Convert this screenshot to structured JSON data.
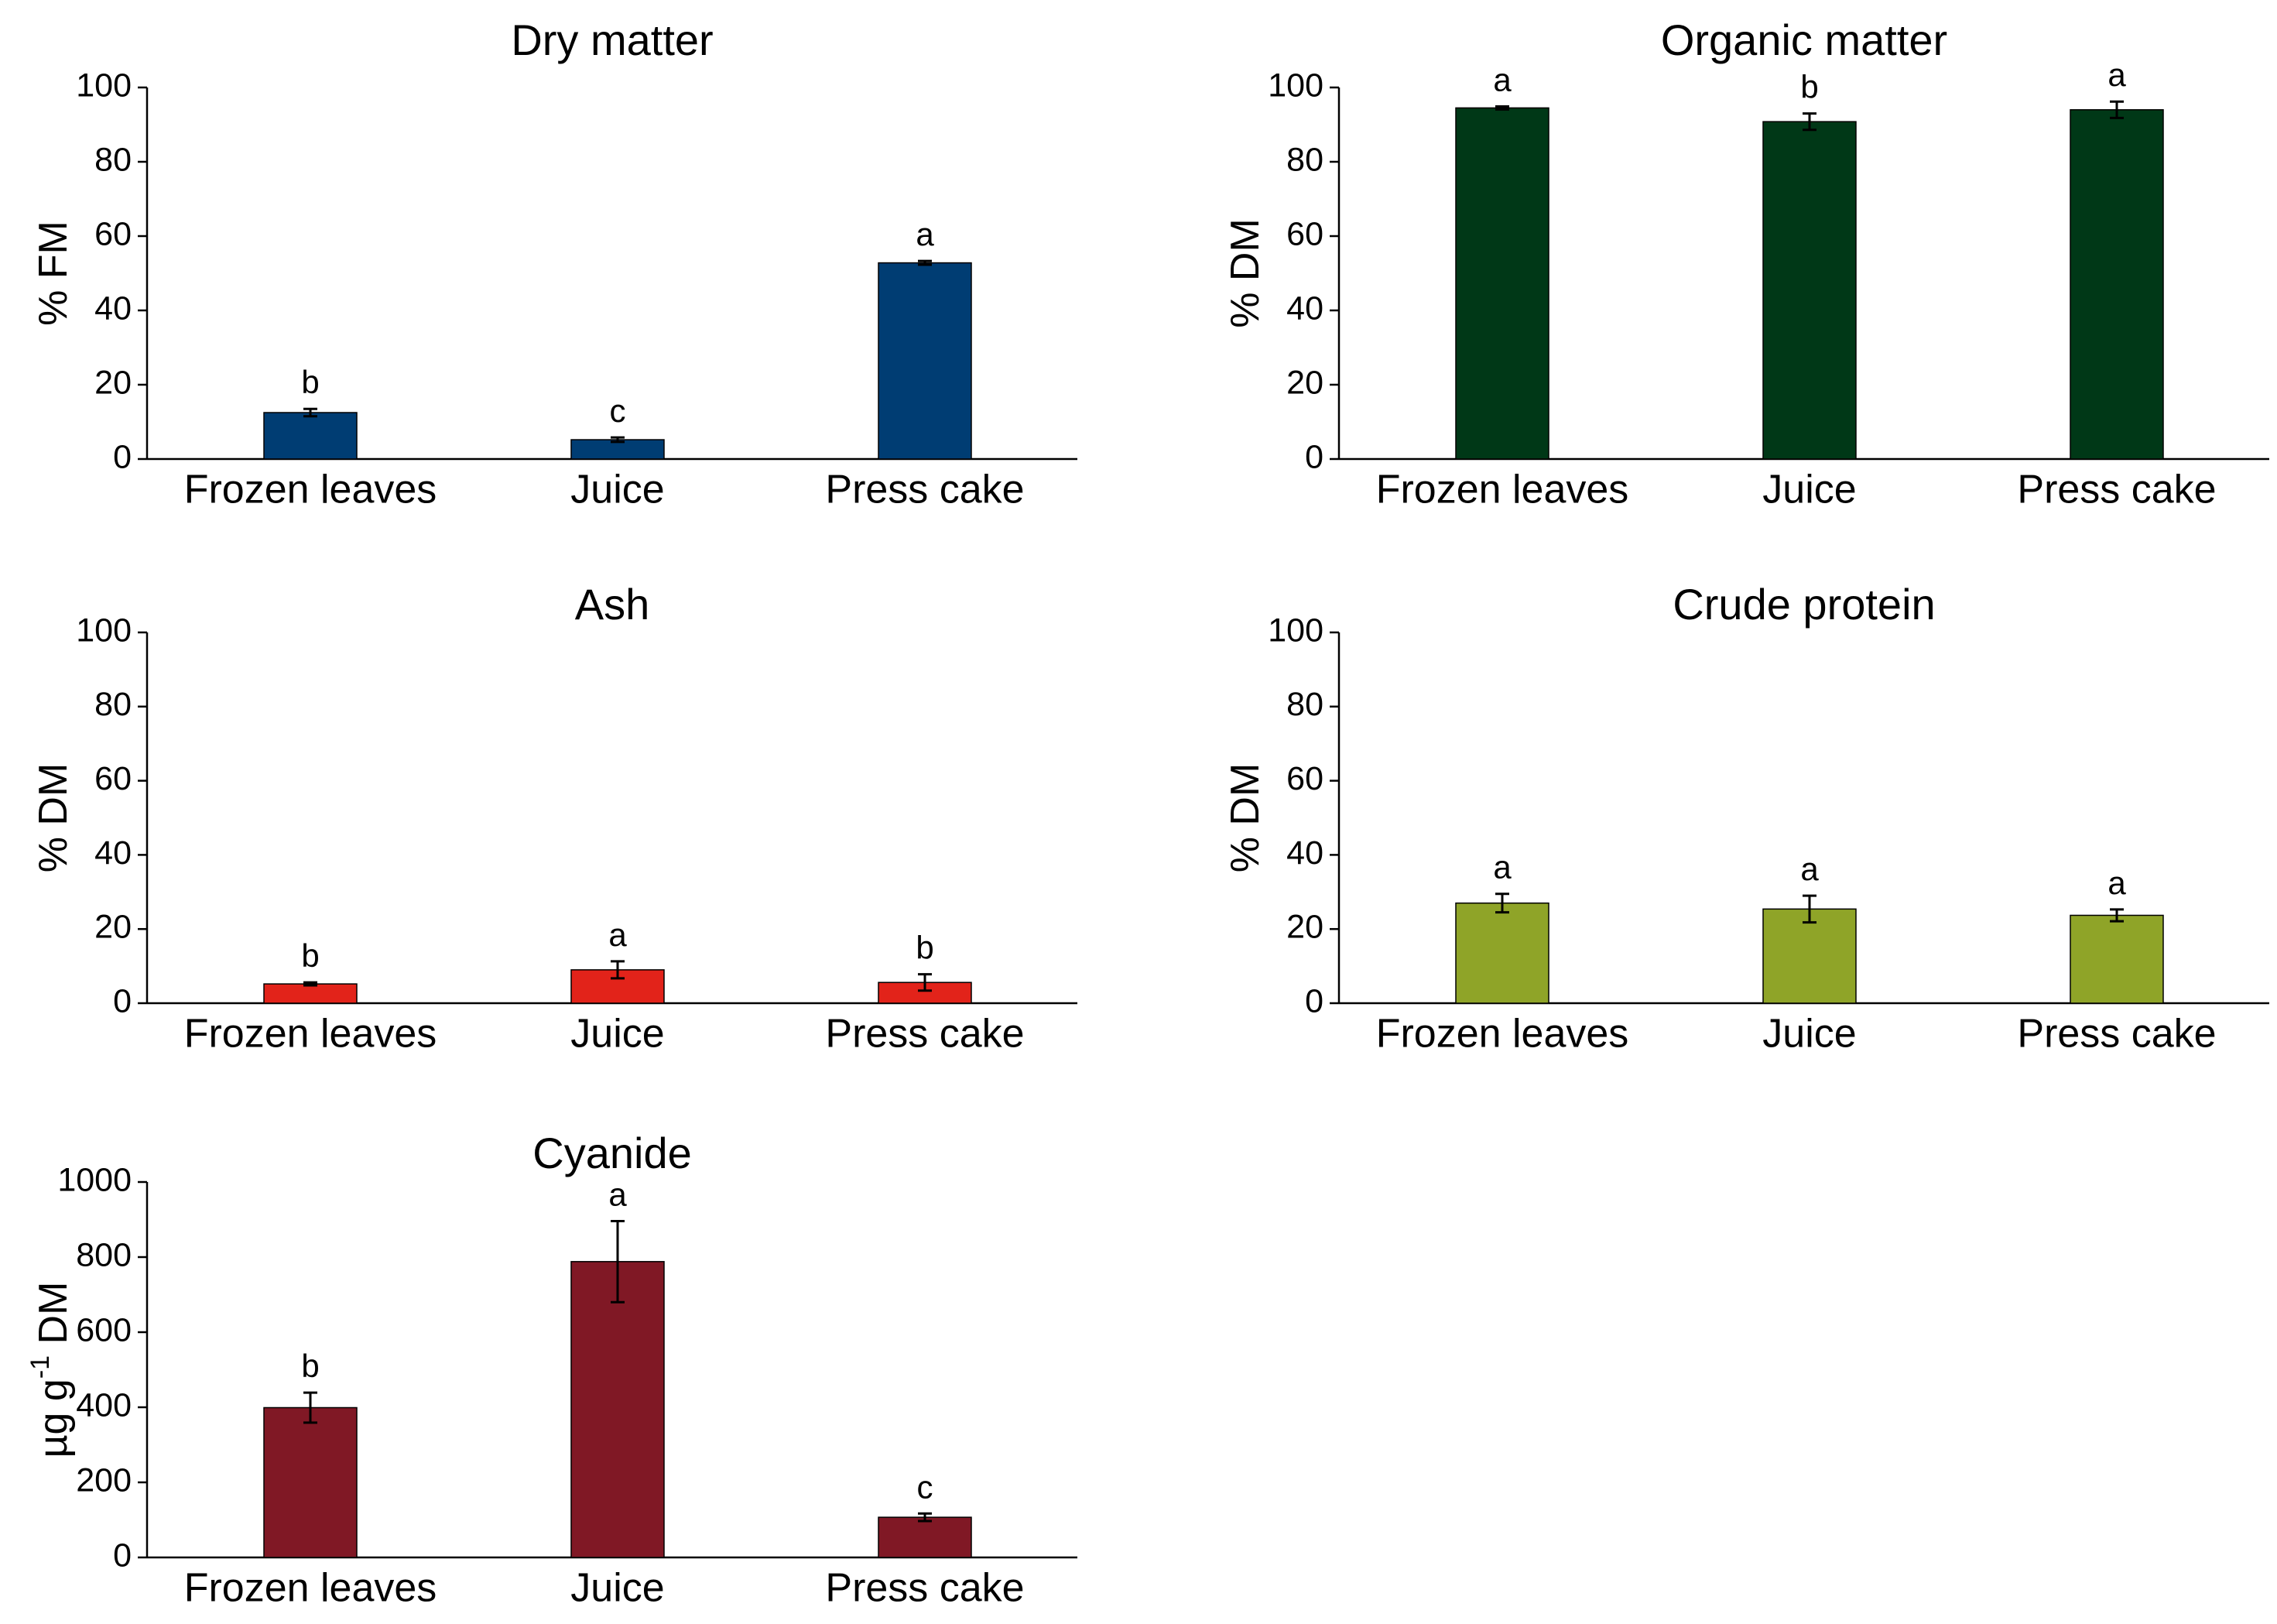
{
  "chart_data": [
    {
      "id": "dry-matter",
      "type": "bar",
      "title": "Dry matter",
      "xlabel": "",
      "ylabel": "% FM",
      "categories": [
        "Frozen leaves",
        "Juice",
        "Press cake"
      ],
      "values": [
        12.5,
        5.2,
        52.8
      ],
      "errors": [
        1.0,
        0.6,
        0.5
      ],
      "significance": [
        "b",
        "c",
        "a"
      ],
      "ylim": [
        0,
        100
      ],
      "yticks": [
        0,
        20,
        40,
        60,
        80,
        100
      ],
      "color": "#003d73"
    },
    {
      "id": "organic-matter",
      "type": "bar",
      "title": "Organic matter",
      "xlabel": "",
      "ylabel": "% DM",
      "categories": [
        "Frozen leaves",
        "Juice",
        "Press cake"
      ],
      "values": [
        94.5,
        90.8,
        94.0
      ],
      "errors": [
        0.4,
        2.2,
        2.2
      ],
      "significance": [
        "a",
        "b",
        "a"
      ],
      "ylim": [
        0,
        100
      ],
      "yticks": [
        0,
        20,
        40,
        60,
        80,
        100
      ],
      "color": "#003817"
    },
    {
      "id": "ash",
      "type": "bar",
      "title": "Ash",
      "xlabel": "",
      "ylabel": "% DM",
      "categories": [
        "Frozen leaves",
        "Juice",
        "Press cake"
      ],
      "values": [
        5.2,
        9.0,
        5.6
      ],
      "errors": [
        0.4,
        2.3,
        2.2
      ],
      "significance": [
        "b",
        "a",
        "b"
      ],
      "ylim": [
        0,
        100
      ],
      "yticks": [
        0,
        20,
        40,
        60,
        80,
        100
      ],
      "color": "#e2231a"
    },
    {
      "id": "crude-protein",
      "type": "bar",
      "title": "Crude protein",
      "xlabel": "",
      "ylabel": "% DM",
      "categories": [
        "Frozen leaves",
        "Juice",
        "Press cake"
      ],
      "values": [
        27.0,
        25.4,
        23.7
      ],
      "errors": [
        2.5,
        3.6,
        1.6
      ],
      "significance": [
        "a",
        "a",
        "a"
      ],
      "ylim": [
        0,
        100
      ],
      "yticks": [
        0,
        20,
        40,
        60,
        80,
        100
      ],
      "color": "#8fa428"
    },
    {
      "id": "cyanide",
      "type": "bar",
      "title": "Cyanide",
      "xlabel": "",
      "ylabel": "µg g",
      "ylabel_superscript": "-1",
      "ylabel_suffix": " DM",
      "categories": [
        "Frozen leaves",
        "Juice",
        "Press cake"
      ],
      "values": [
        399,
        788,
        107
      ],
      "errors": [
        40,
        108,
        10
      ],
      "significance": [
        "b",
        "a",
        "c"
      ],
      "ylim": [
        0,
        1000
      ],
      "yticks": [
        0,
        200,
        400,
        600,
        800,
        1000
      ],
      "color": "#801825"
    }
  ]
}
